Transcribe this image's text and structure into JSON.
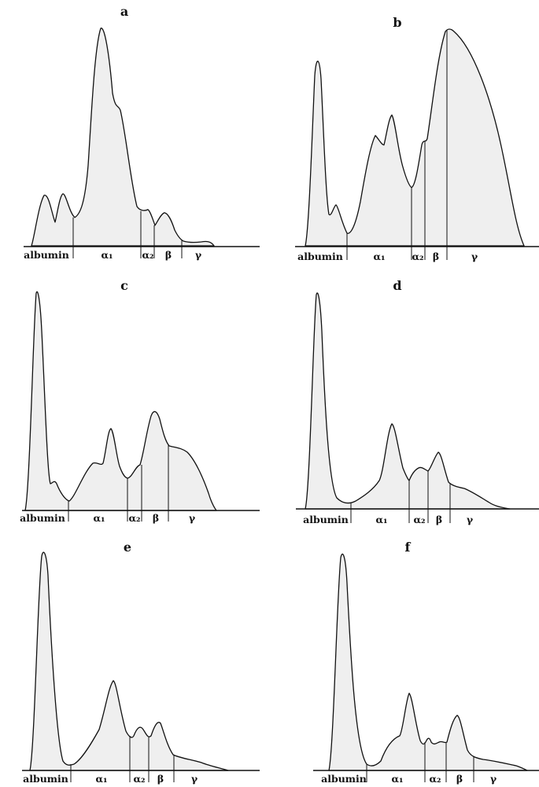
{
  "panels": [
    {
      "letter": "a",
      "labels": [
        {
          "text": "albumin"
        },
        {
          "text": "α₁"
        },
        {
          "text": "α₂"
        },
        {
          "text": "β"
        },
        {
          "text": "γ"
        }
      ]
    },
    {
      "letter": "b",
      "labels": [
        {
          "text": "albumin"
        },
        {
          "text": "α₁"
        },
        {
          "text": "α₂"
        },
        {
          "text": "β"
        },
        {
          "text": "γ"
        }
      ]
    },
    {
      "letter": "c",
      "labels": [
        {
          "text": "albumin"
        },
        {
          "text": "α₁"
        },
        {
          "text": "α₂"
        },
        {
          "text": "β"
        },
        {
          "text": "γ"
        }
      ]
    },
    {
      "letter": "d",
      "labels": [
        {
          "text": "albumin"
        },
        {
          "text": "α₁"
        },
        {
          "text": "α₂"
        },
        {
          "text": "β"
        },
        {
          "text": "γ"
        }
      ]
    },
    {
      "letter": "e",
      "labels": [
        {
          "text": "albumin"
        },
        {
          "text": "α₁"
        },
        {
          "text": "α₂"
        },
        {
          "text": "β"
        },
        {
          "text": "γ"
        }
      ]
    },
    {
      "letter": "f",
      "labels": [
        {
          "text": "albumin"
        },
        {
          "text": "α₁"
        },
        {
          "text": "α₂"
        },
        {
          "text": "β"
        },
        {
          "text": "γ"
        }
      ]
    }
  ]
}
